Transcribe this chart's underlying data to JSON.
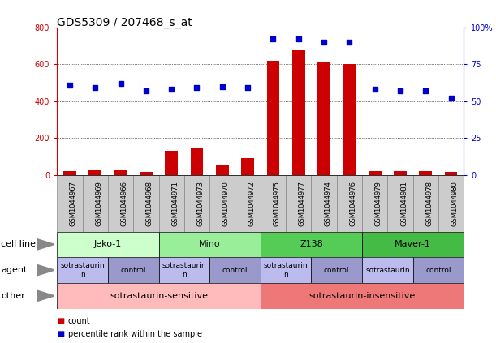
{
  "title": "GDS5309 / 207468_s_at",
  "samples": [
    "GSM1044967",
    "GSM1044969",
    "GSM1044966",
    "GSM1044968",
    "GSM1044971",
    "GSM1044973",
    "GSM1044970",
    "GSM1044972",
    "GSM1044975",
    "GSM1044977",
    "GSM1044974",
    "GSM1044976",
    "GSM1044979",
    "GSM1044981",
    "GSM1044978",
    "GSM1044980"
  ],
  "counts": [
    20,
    25,
    25,
    18,
    130,
    145,
    55,
    90,
    620,
    675,
    615,
    600,
    20,
    20,
    20,
    15
  ],
  "percentiles": [
    61,
    59,
    62,
    57,
    58,
    59,
    60,
    59,
    92,
    92,
    90,
    90,
    58,
    57,
    57,
    52
  ],
  "cell_lines": [
    {
      "label": "Jeko-1",
      "start": 0,
      "end": 4,
      "color": "#ccffcc"
    },
    {
      "label": "Mino",
      "start": 4,
      "end": 8,
      "color": "#99ee99"
    },
    {
      "label": "Z138",
      "start": 8,
      "end": 12,
      "color": "#55cc55"
    },
    {
      "label": "Maver-1",
      "start": 12,
      "end": 16,
      "color": "#44bb44"
    }
  ],
  "agents": [
    {
      "label": "sotrastaurin\nn",
      "start": 0,
      "end": 2,
      "color": "#bbbbee"
    },
    {
      "label": "control",
      "start": 2,
      "end": 4,
      "color": "#9999cc"
    },
    {
      "label": "sotrastaurin\nn",
      "start": 4,
      "end": 6,
      "color": "#bbbbee"
    },
    {
      "label": "control",
      "start": 6,
      "end": 8,
      "color": "#9999cc"
    },
    {
      "label": "sotrastaurin\nn",
      "start": 8,
      "end": 10,
      "color": "#bbbbee"
    },
    {
      "label": "control",
      "start": 10,
      "end": 12,
      "color": "#9999cc"
    },
    {
      "label": "sotrastaurin",
      "start": 12,
      "end": 14,
      "color": "#bbbbee"
    },
    {
      "label": "control",
      "start": 14,
      "end": 16,
      "color": "#9999cc"
    }
  ],
  "others": [
    {
      "label": "sotrastaurin-sensitive",
      "start": 0,
      "end": 8,
      "color": "#ffbbbb"
    },
    {
      "label": "sotrastaurin-insensitive",
      "start": 8,
      "end": 16,
      "color": "#ee7777"
    }
  ],
  "ylim_left": [
    0,
    800
  ],
  "ylim_right": [
    0,
    100
  ],
  "yticks_left": [
    0,
    200,
    400,
    600,
    800
  ],
  "yticks_right": [
    0,
    25,
    50,
    75,
    100
  ],
  "ytick_labels_right": [
    "0",
    "25",
    "50",
    "75",
    "100%"
  ],
  "bar_color": "#cc0000",
  "dot_color": "#0000cc",
  "bg_color": "#ffffff",
  "left_axis_color": "#cc0000",
  "right_axis_color": "#0000cc",
  "label_fontsize": 7,
  "tick_fontsize": 7,
  "title_fontsize": 10,
  "sample_box_color": "#cccccc",
  "sample_box_edge": "#888888"
}
